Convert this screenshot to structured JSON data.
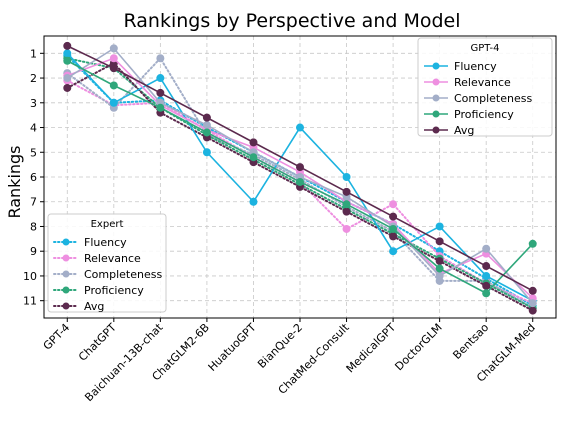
{
  "chart_data": {
    "type": "line",
    "title": "Rankings by Perspective and Model",
    "ylabel": "Rankings",
    "xlabel": "",
    "categories": [
      "GPT-4",
      "ChatGPT",
      "Baichuan-13B-chat",
      "ChatGLM2-6B",
      "HuatuoGPT",
      "BianQue-2",
      "ChatMed-Consult",
      "MedicalGPT",
      "DoctorGLM",
      "Bentsao",
      "ChatGLM-Med"
    ],
    "y_ticks": [
      "1",
      "2",
      "3",
      "4",
      "5",
      "6",
      "7",
      "8",
      "9",
      "10",
      "11"
    ],
    "ylim": [
      0.3,
      11.7
    ],
    "y_inverted": true,
    "grid": true,
    "groups": [
      {
        "title": "GPT-4",
        "legend_position": "top-right",
        "line_style": "solid",
        "series": [
          {
            "name": "Fluency",
            "color": "#1cb3e0",
            "values": [
              1.0,
              3.0,
              2.0,
              5.0,
              7.0,
              4.0,
              6.0,
              9.0,
              8.0,
              10.0,
              11.0
            ]
          },
          {
            "name": "Relevance",
            "color": "#ee8fe0",
            "values": [
              1.9,
              1.2,
              3.1,
              4.1,
              4.8,
              5.8,
              7.0,
              7.9,
              9.9,
              9.1,
              10.9
            ]
          },
          {
            "name": "Completeness",
            "color": "#a3aec8",
            "values": [
              2.0,
              0.8,
              3.0,
              3.9,
              5.0,
              6.0,
              6.8,
              8.0,
              10.0,
              8.9,
              11.1
            ]
          },
          {
            "name": "Proficiency",
            "color": "#2fa77b",
            "values": [
              1.3,
              2.3,
              3.2,
              4.2,
              5.2,
              6.2,
              7.1,
              8.1,
              9.7,
              10.7,
              8.7
            ]
          },
          {
            "name": "Avg",
            "color": "#5c2a4e",
            "values": [
              0.7,
              1.6,
              2.6,
              3.6,
              4.6,
              5.6,
              6.6,
              7.6,
              8.6,
              9.6,
              10.6
            ]
          }
        ]
      },
      {
        "title": "Expert",
        "legend_position": "bottom-left",
        "line_style": "dotted",
        "series": [
          {
            "name": "Fluency",
            "color": "#1cb3e0",
            "values": [
              1.1,
              3.0,
              2.9,
              4.0,
              5.0,
              6.0,
              7.0,
              7.9,
              9.0,
              10.1,
              11.2
            ]
          },
          {
            "name": "Relevance",
            "color": "#ee8fe0",
            "values": [
              2.1,
              3.1,
              3.0,
              4.1,
              5.2,
              6.2,
              8.1,
              7.1,
              9.2,
              10.3,
              11.1
            ]
          },
          {
            "name": "Completeness",
            "color": "#a3aec8",
            "values": [
              1.8,
              3.2,
              1.2,
              4.3,
              5.1,
              6.1,
              7.2,
              8.2,
              10.2,
              10.2,
              11.3
            ]
          },
          {
            "name": "Proficiency",
            "color": "#2fa77b",
            "values": [
              1.2,
              1.6,
              3.2,
              4.3,
              5.3,
              6.3,
              7.3,
              8.3,
              9.3,
              10.3,
              11.3
            ]
          },
          {
            "name": "Avg",
            "color": "#5c2a4e",
            "values": [
              2.4,
              1.4,
              3.4,
              4.4,
              5.4,
              6.4,
              7.4,
              8.4,
              9.4,
              10.4,
              11.4
            ]
          }
        ]
      }
    ]
  }
}
